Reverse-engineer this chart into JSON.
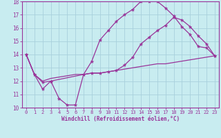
{
  "xlabel": "Windchill (Refroidissement éolien,°C)",
  "bg_color": "#c8ecf0",
  "grid_color": "#a8d0dc",
  "line_color": "#993399",
  "xlim": [
    -0.5,
    23.5
  ],
  "ylim": [
    10,
    18
  ],
  "yticks": [
    10,
    11,
    12,
    13,
    14,
    15,
    16,
    17,
    18
  ],
  "xticks": [
    0,
    1,
    2,
    3,
    4,
    5,
    6,
    7,
    8,
    9,
    10,
    11,
    12,
    13,
    14,
    15,
    16,
    17,
    18,
    19,
    20,
    21,
    22,
    23
  ],
  "line1_x": [
    0,
    1,
    2,
    3,
    4,
    5,
    6,
    7,
    8,
    9,
    10,
    11,
    12,
    13,
    14,
    15,
    16,
    17,
    18,
    19,
    20,
    21,
    22,
    23
  ],
  "line1_y": [
    14.0,
    12.5,
    11.4,
    12.0,
    10.7,
    10.2,
    10.2,
    12.5,
    13.5,
    15.1,
    15.8,
    16.5,
    17.0,
    17.4,
    18.0,
    18.0,
    18.0,
    17.5,
    16.9,
    16.1,
    15.5,
    14.6,
    14.5,
    13.9
  ],
  "line2_x": [
    0,
    1,
    2,
    3,
    7,
    8,
    9,
    10,
    11,
    12,
    13,
    14,
    15,
    16,
    17,
    18,
    19,
    20,
    21,
    22,
    23
  ],
  "line2_y": [
    14.0,
    12.5,
    11.9,
    12.0,
    12.5,
    12.6,
    12.6,
    12.7,
    12.8,
    13.2,
    13.8,
    14.8,
    15.3,
    15.8,
    16.2,
    16.8,
    16.6,
    16.1,
    15.4,
    14.8,
    13.9
  ],
  "line3_x": [
    0,
    1,
    2,
    3,
    4,
    5,
    6,
    7,
    8,
    9,
    10,
    11,
    12,
    13,
    14,
    15,
    16,
    17,
    18,
    19,
    20,
    21,
    22,
    23
  ],
  "line3_y": [
    14.0,
    12.5,
    12.0,
    12.2,
    12.3,
    12.4,
    12.5,
    12.5,
    12.6,
    12.6,
    12.7,
    12.8,
    12.9,
    13.0,
    13.1,
    13.2,
    13.3,
    13.3,
    13.4,
    13.5,
    13.6,
    13.7,
    13.8,
    13.9
  ]
}
